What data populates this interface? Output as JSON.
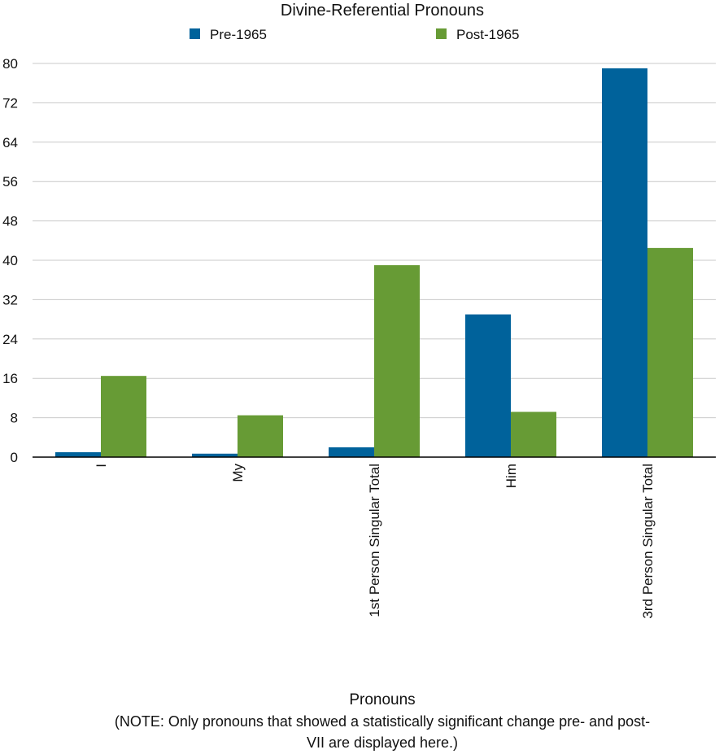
{
  "chart_data": {
    "type": "bar",
    "title": "Divine-Referential Pronouns",
    "xlabel": "Pronouns",
    "note": "(NOTE: Only pronouns that showed a statistically significant change pre- and post-",
    "note_line2": "VII are displayed here.)",
    "ylabel": "",
    "categories": [
      "I",
      "My",
      "1st Person Singular Total",
      "Him",
      "3rd Person Singular Total"
    ],
    "series": [
      {
        "name": "Pre-1965",
        "color": "#00629b",
        "values": [
          1.0,
          0.7,
          2.0,
          29.0,
          79.0
        ]
      },
      {
        "name": "Post-1965",
        "color": "#679b35",
        "values": [
          16.5,
          8.5,
          39.0,
          9.2,
          42.5
        ]
      }
    ],
    "ylim": [
      0,
      80
    ],
    "yticks": [
      0,
      8,
      16,
      24,
      32,
      40,
      48,
      56,
      64,
      72,
      80
    ],
    "grid": true,
    "legend_position": "top"
  }
}
